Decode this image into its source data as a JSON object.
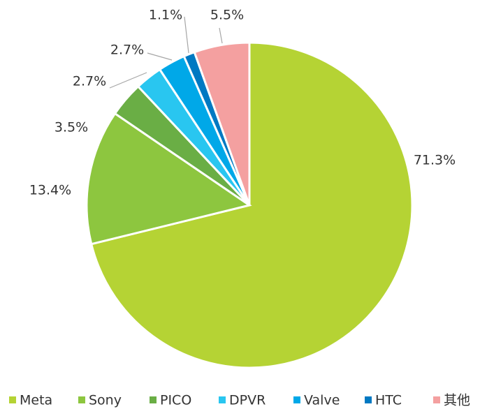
{
  "chart_data": {
    "type": "pie",
    "categories": [
      "Meta",
      "Sony",
      "PICO",
      "DPVR",
      "Valve",
      "HTC",
      "其他"
    ],
    "values": [
      71.3,
      13.4,
      3.5,
      2.7,
      2.7,
      1.1,
      5.5
    ],
    "value_labels": [
      "71.3%",
      "13.4%",
      "3.5%",
      "2.7%",
      "2.7%",
      "1.1%",
      "5.5%"
    ],
    "colors": [
      "#b5d334",
      "#8dc63f",
      "#6aae45",
      "#29c6f0",
      "#00a8e8",
      "#0079c2",
      "#f4a0a0"
    ],
    "legend": "bottom"
  }
}
